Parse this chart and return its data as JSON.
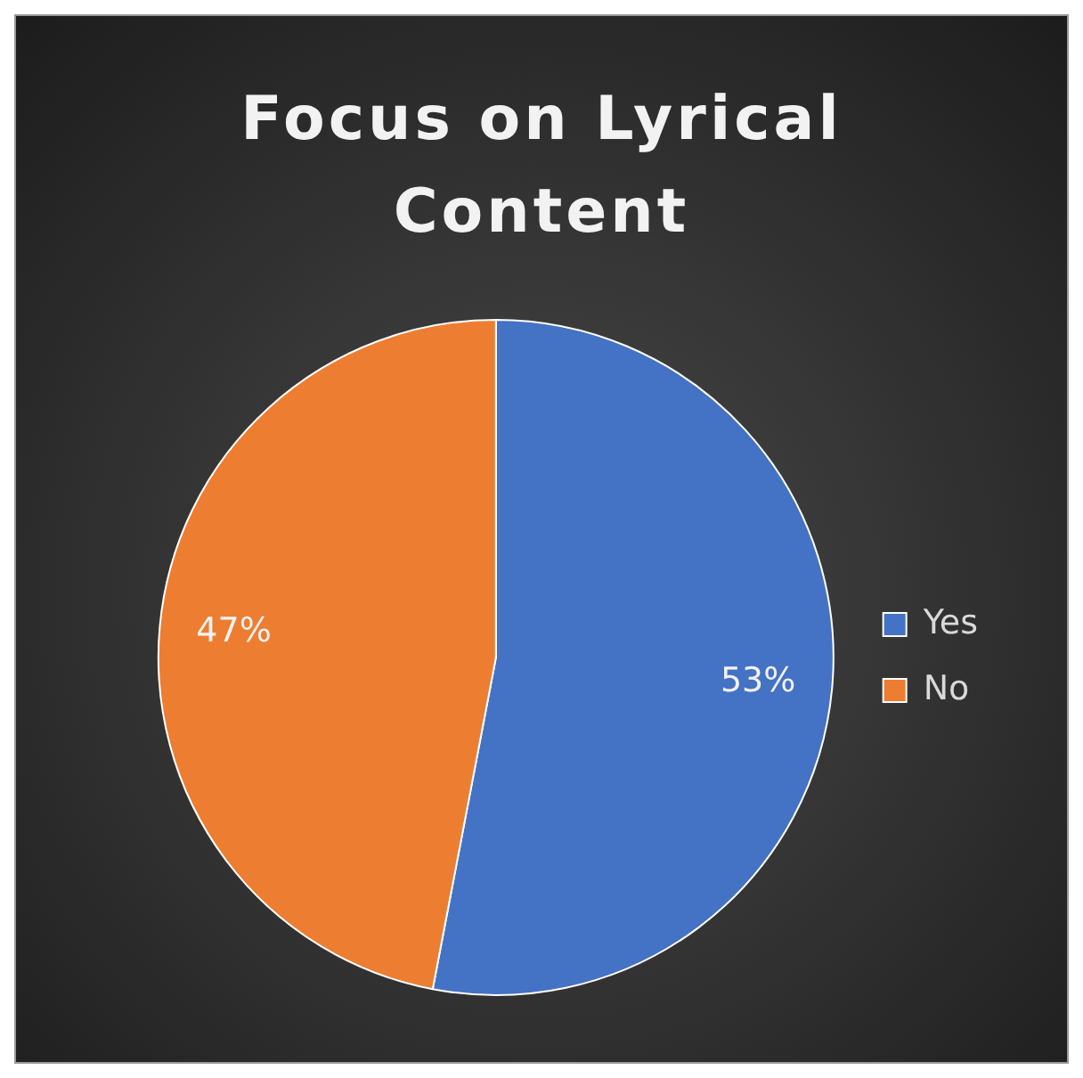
{
  "chart_data": {
    "type": "pie",
    "title": "Focus on Lyrical Content",
    "categories": [
      "Yes",
      "No"
    ],
    "values": [
      53,
      47
    ],
    "colors": [
      "#4472c4",
      "#ed7d31"
    ],
    "value_labels": [
      "53%",
      "47%"
    ],
    "legend": "right"
  }
}
